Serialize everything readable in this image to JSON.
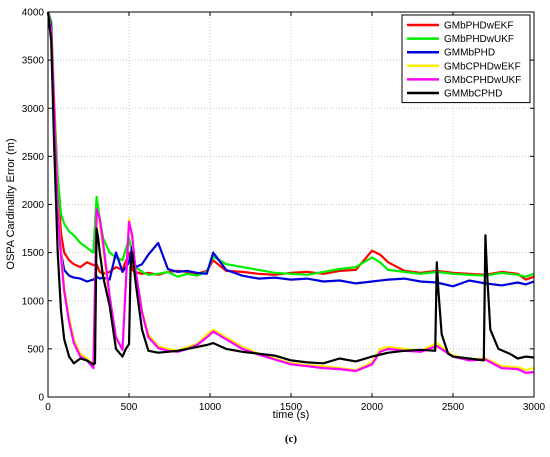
{
  "chart_data": {
    "type": "line",
    "xlabel": "time (s)",
    "ylabel": "OSPA Cardinality Error (m)",
    "xlim": [
      0,
      3000
    ],
    "ylim": [
      0,
      4000
    ],
    "xticks": [
      0,
      500,
      1000,
      1500,
      2000,
      2500,
      3000
    ],
    "yticks": [
      0,
      500,
      1000,
      1500,
      2000,
      2500,
      3000,
      3500,
      4000
    ],
    "grid": true,
    "legend_position": "top-right",
    "caption": "(c)",
    "series": [
      {
        "name": "GMbPHDwEKF",
        "color": "#ff0000",
        "x": [
          0,
          20,
          40,
          60,
          80,
          100,
          130,
          160,
          200,
          240,
          280,
          300,
          320,
          340,
          380,
          420,
          460,
          500,
          520,
          540,
          580,
          620,
          680,
          740,
          800,
          860,
          920,
          980,
          1020,
          1100,
          1200,
          1300,
          1400,
          1500,
          1600,
          1700,
          1800,
          1900,
          2000,
          2050,
          2100,
          2200,
          2300,
          2400,
          2500,
          2600,
          2700,
          2800,
          2900,
          2950,
          3000
        ],
        "y": [
          4000,
          3900,
          2900,
          2200,
          1700,
          1500,
          1420,
          1380,
          1350,
          1400,
          1370,
          1380,
          1300,
          1280,
          1300,
          1350,
          1320,
          1500,
          1320,
          1300,
          1280,
          1290,
          1270,
          1300,
          1310,
          1300,
          1280,
          1310,
          1420,
          1310,
          1300,
          1280,
          1270,
          1290,
          1300,
          1280,
          1310,
          1320,
          1520,
          1480,
          1400,
          1310,
          1290,
          1310,
          1290,
          1280,
          1270,
          1300,
          1280,
          1220,
          1250
        ]
      },
      {
        "name": "GMbPHDwUKF",
        "color": "#00ee00",
        "x": [
          0,
          20,
          40,
          60,
          80,
          100,
          130,
          160,
          200,
          240,
          280,
          300,
          320,
          340,
          380,
          420,
          460,
          500,
          520,
          540,
          580,
          620,
          680,
          740,
          800,
          860,
          920,
          980,
          1020,
          1100,
          1200,
          1300,
          1400,
          1500,
          1600,
          1700,
          1800,
          1900,
          2000,
          2050,
          2100,
          2200,
          2300,
          2400,
          2500,
          2600,
          2700,
          2800,
          2900,
          2950,
          3000
        ],
        "y": [
          4000,
          3900,
          3000,
          2300,
          1900,
          1800,
          1720,
          1680,
          1600,
          1550,
          1500,
          2080,
          1850,
          1650,
          1500,
          1450,
          1420,
          1650,
          1500,
          1350,
          1300,
          1270,
          1280,
          1300,
          1250,
          1280,
          1260,
          1300,
          1460,
          1380,
          1350,
          1320,
          1290,
          1280,
          1270,
          1300,
          1330,
          1350,
          1450,
          1400,
          1320,
          1300,
          1280,
          1300,
          1280,
          1270,
          1260,
          1290,
          1270,
          1250,
          1280
        ]
      },
      {
        "name": "GMMbPHD",
        "color": "#0000dd",
        "x": [
          0,
          20,
          40,
          60,
          80,
          100,
          130,
          160,
          200,
          240,
          280,
          300,
          320,
          340,
          380,
          420,
          460,
          500,
          520,
          540,
          580,
          620,
          680,
          740,
          800,
          860,
          920,
          980,
          1020,
          1100,
          1200,
          1300,
          1400,
          1500,
          1600,
          1700,
          1800,
          1900,
          2000,
          2100,
          2200,
          2300,
          2400,
          2500,
          2600,
          2700,
          2800,
          2900,
          2950,
          3000
        ],
        "y": [
          4000,
          3850,
          2800,
          2000,
          1500,
          1320,
          1260,
          1240,
          1230,
          1200,
          1220,
          1250,
          1230,
          1240,
          1220,
          1500,
          1300,
          1400,
          1560,
          1350,
          1380,
          1480,
          1600,
          1330,
          1300,
          1310,
          1290,
          1280,
          1500,
          1320,
          1260,
          1230,
          1240,
          1220,
          1230,
          1200,
          1210,
          1180,
          1200,
          1220,
          1230,
          1200,
          1190,
          1150,
          1210,
          1180,
          1160,
          1190,
          1170,
          1200
        ]
      },
      {
        "name": "GMbCPHDwEKF",
        "color": "#ffee00",
        "x": [
          0,
          20,
          40,
          60,
          80,
          100,
          130,
          160,
          200,
          240,
          280,
          300,
          320,
          340,
          380,
          420,
          460,
          500,
          520,
          540,
          580,
          620,
          680,
          740,
          800,
          860,
          920,
          980,
          1020,
          1100,
          1200,
          1300,
          1400,
          1500,
          1600,
          1700,
          1800,
          1900,
          2000,
          2050,
          2100,
          2200,
          2300,
          2400,
          2500,
          2600,
          2700,
          2800,
          2900,
          2950,
          3000
        ],
        "y": [
          4000,
          3800,
          3000,
          2000,
          1500,
          1150,
          820,
          600,
          450,
          400,
          330,
          1900,
          1800,
          1550,
          1000,
          600,
          500,
          1850,
          1650,
          1300,
          900,
          650,
          530,
          500,
          480,
          520,
          550,
          650,
          700,
          620,
          520,
          450,
          400,
          350,
          330,
          320,
          300,
          280,
          360,
          500,
          520,
          500,
          480,
          560,
          430,
          390,
          400,
          320,
          310,
          280,
          300
        ]
      },
      {
        "name": "GMbCPHDwUKF",
        "color": "#ff00ff",
        "x": [
          0,
          20,
          40,
          60,
          80,
          100,
          130,
          160,
          200,
          240,
          280,
          300,
          320,
          340,
          380,
          420,
          460,
          500,
          520,
          540,
          580,
          620,
          680,
          740,
          800,
          860,
          920,
          980,
          1020,
          1100,
          1200,
          1300,
          1400,
          1500,
          1600,
          1700,
          1800,
          1900,
          2000,
          2050,
          2100,
          2200,
          2300,
          2400,
          2500,
          2600,
          2700,
          2800,
          2900,
          2950,
          3000
        ],
        "y": [
          4000,
          3800,
          2950,
          1950,
          1450,
          1100,
          780,
          560,
          420,
          380,
          300,
          1950,
          1850,
          1600,
          1050,
          620,
          490,
          1820,
          1680,
          1320,
          880,
          620,
          510,
          480,
          470,
          500,
          540,
          620,
          680,
          600,
          500,
          440,
          390,
          340,
          320,
          300,
          290,
          270,
          340,
          470,
          500,
          480,
          470,
          530,
          420,
          380,
          390,
          300,
          290,
          250,
          260
        ]
      },
      {
        "name": "GMMbCPHD",
        "color": "#000000",
        "x": [
          0,
          20,
          40,
          60,
          80,
          100,
          130,
          160,
          200,
          240,
          280,
          290,
          300,
          310,
          320,
          340,
          380,
          420,
          460,
          480,
          500,
          510,
          520,
          540,
          580,
          620,
          680,
          740,
          800,
          860,
          920,
          980,
          1020,
          1100,
          1200,
          1300,
          1400,
          1500,
          1600,
          1700,
          1800,
          1900,
          2000,
          2100,
          2200,
          2300,
          2390,
          2400,
          2410,
          2430,
          2470,
          2500,
          2600,
          2690,
          2700,
          2710,
          2730,
          2780,
          2850,
          2900,
          2950,
          3000
        ],
        "y": [
          4000,
          3700,
          2500,
          1500,
          900,
          600,
          420,
          350,
          400,
          380,
          340,
          350,
          1750,
          1650,
          1500,
          1250,
          950,
          500,
          420,
          500,
          550,
          1350,
          1500,
          1200,
          700,
          480,
          460,
          470,
          480,
          500,
          520,
          540,
          560,
          500,
          470,
          450,
          430,
          380,
          360,
          350,
          400,
          370,
          420,
          460,
          480,
          490,
          480,
          1400,
          1100,
          650,
          450,
          420,
          400,
          380,
          1680,
          1300,
          700,
          500,
          450,
          400,
          420,
          410
        ]
      }
    ]
  }
}
